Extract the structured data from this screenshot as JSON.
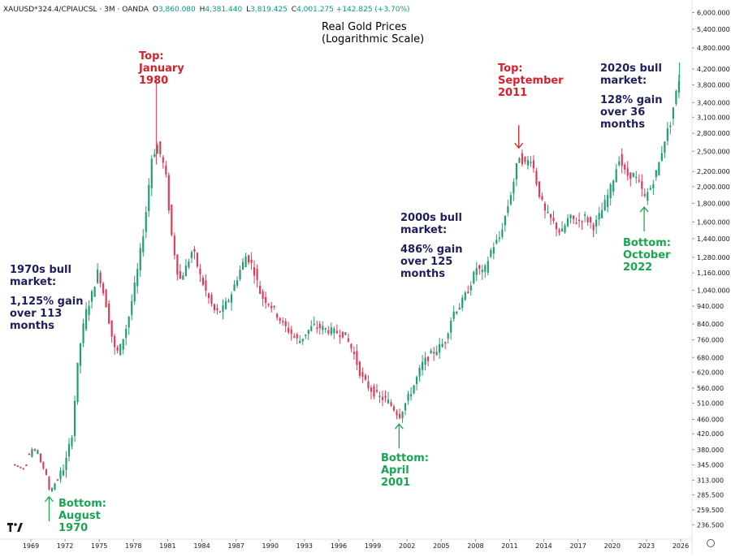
{
  "header": {
    "symbol": "XAUUSD*324.4/CPIAUCSL · 3M · OANDA",
    "open_label": "O",
    "open": "3,860.080",
    "high_label": "H",
    "high": "4,381.440",
    "low_label": "L",
    "low": "3,819.425",
    "close_label": "C",
    "close": "4,001.275",
    "change": "+142.825 (+3.70%)"
  },
  "title_lines": [
    "Real Gold Prices",
    "(Logarithmic Scale)"
  ],
  "annotations": {
    "top_1980": [
      "Top:",
      "January",
      "1980"
    ],
    "top_2011": [
      "Top:",
      "September",
      "2011"
    ],
    "bull_2020s_a": [
      "2020s bull",
      "market:"
    ],
    "bull_2020s_b": [
      "128% gain",
      "over 36",
      "months"
    ],
    "bull_2000s_a": [
      "2000s bull",
      "market:"
    ],
    "bull_2000s_b": [
      "486% gain",
      "over 125",
      "months"
    ],
    "bull_1970s_a": [
      "1970s bull",
      "market:"
    ],
    "bull_1970s_b": [
      "1,125% gain",
      "over 113",
      "months"
    ],
    "bottom_1970": [
      "Bottom:",
      "August",
      "1970"
    ],
    "bottom_2001": [
      "Bottom:",
      "April",
      "2001"
    ],
    "bottom_2022": [
      "Bottom:",
      "October",
      "2022"
    ]
  },
  "colors": {
    "up": "#1f9e74",
    "down": "#e23a55",
    "top_text": "#d8202a",
    "bottom_text": "#19a653",
    "bull_text": "#1c1f5a"
  },
  "chart_data": {
    "type": "candlestick",
    "title": "Real Gold Prices (Logarithmic Scale)",
    "scale": "log",
    "x_ticks": [
      "1969",
      "1972",
      "1975",
      "1978",
      "1981",
      "1984",
      "1987",
      "1990",
      "1993",
      "1996",
      "1999",
      "2002",
      "2005",
      "2008",
      "2011",
      "2014",
      "2017",
      "2020",
      "2023",
      "2026"
    ],
    "y_ticks": [
      "6,000.000",
      "5,400.000",
      "4,800.000",
      "4,200.000",
      "3,800.000",
      "3,400.000",
      "3,100.000",
      "2,800.000",
      "2,500.000",
      "2,200.000",
      "2,000.000",
      "1,800.000",
      "1,600.000",
      "1,440.000",
      "1,280.000",
      "1,160.000",
      "1,040.000",
      "940.000",
      "840.000",
      "760.000",
      "680.000",
      "620.000",
      "560.000",
      "510.000",
      "460.000",
      "420.000",
      "380.000",
      "345.000",
      "313.000",
      "285.500",
      "259.500",
      "236.500"
    ],
    "ylim": [
      225,
      6300
    ],
    "series": [
      {
        "name": "XAUUSD*324.4/CPIAUCSL",
        "points": [
          {
            "x": 1967.6,
            "y": 345
          },
          {
            "x": 1968.5,
            "y": 335
          },
          {
            "x": 1969.0,
            "y": 385
          },
          {
            "x": 1969.6,
            "y": 370
          },
          {
            "x": 1970.1,
            "y": 340
          },
          {
            "x": 1970.6,
            "y": 297
          },
          {
            "x": 1971.2,
            "y": 310
          },
          {
            "x": 1972.0,
            "y": 345
          },
          {
            "x": 1972.6,
            "y": 420
          },
          {
            "x": 1973.2,
            "y": 700
          },
          {
            "x": 1973.8,
            "y": 900
          },
          {
            "x": 1974.3,
            "y": 1000
          },
          {
            "x": 1974.9,
            "y": 1180
          },
          {
            "x": 1975.6,
            "y": 950
          },
          {
            "x": 1976.3,
            "y": 720
          },
          {
            "x": 1976.7,
            "y": 700
          },
          {
            "x": 1977.5,
            "y": 850
          },
          {
            "x": 1978.3,
            "y": 1150
          },
          {
            "x": 1979.0,
            "y": 1600
          },
          {
            "x": 1979.6,
            "y": 2400
          },
          {
            "x": 1980.1,
            "y": 2600
          },
          {
            "x": 1980.8,
            "y": 2200
          },
          {
            "x": 1981.3,
            "y": 1500
          },
          {
            "x": 1982.0,
            "y": 1100
          },
          {
            "x": 1982.6,
            "y": 1200
          },
          {
            "x": 1983.2,
            "y": 1350
          },
          {
            "x": 1983.8,
            "y": 1150
          },
          {
            "x": 1984.5,
            "y": 1000
          },
          {
            "x": 1985.2,
            "y": 900
          },
          {
            "x": 1985.8,
            "y": 920
          },
          {
            "x": 1986.5,
            "y": 1000
          },
          {
            "x": 1987.2,
            "y": 1150
          },
          {
            "x": 1987.9,
            "y": 1300
          },
          {
            "x": 1988.5,
            "y": 1200
          },
          {
            "x": 1989.2,
            "y": 1000
          },
          {
            "x": 1989.9,
            "y": 960
          },
          {
            "x": 1990.5,
            "y": 900
          },
          {
            "x": 1991.2,
            "y": 830
          },
          {
            "x": 1991.9,
            "y": 790
          },
          {
            "x": 1992.5,
            "y": 750
          },
          {
            "x": 1993.2,
            "y": 800
          },
          {
            "x": 1993.8,
            "y": 830
          },
          {
            "x": 1994.5,
            "y": 820
          },
          {
            "x": 1995.5,
            "y": 800
          },
          {
            "x": 1996.5,
            "y": 790
          },
          {
            "x": 1997.3,
            "y": 700
          },
          {
            "x": 1998.0,
            "y": 600
          },
          {
            "x": 1998.7,
            "y": 560
          },
          {
            "x": 1999.5,
            "y": 530
          },
          {
            "x": 2000.2,
            "y": 520
          },
          {
            "x": 2000.9,
            "y": 490
          },
          {
            "x": 2001.3,
            "y": 470
          },
          {
            "x": 2002.0,
            "y": 520
          },
          {
            "x": 2002.7,
            "y": 580
          },
          {
            "x": 2003.3,
            "y": 650
          },
          {
            "x": 2004.0,
            "y": 690
          },
          {
            "x": 2004.7,
            "y": 720
          },
          {
            "x": 2005.3,
            "y": 750
          },
          {
            "x": 2006.0,
            "y": 900
          },
          {
            "x": 2006.7,
            "y": 950
          },
          {
            "x": 2007.4,
            "y": 1050
          },
          {
            "x": 2008.1,
            "y": 1200
          },
          {
            "x": 2008.7,
            "y": 1150
          },
          {
            "x": 2009.4,
            "y": 1350
          },
          {
            "x": 2010.1,
            "y": 1450
          },
          {
            "x": 2010.8,
            "y": 1750
          },
          {
            "x": 2011.4,
            "y": 2100
          },
          {
            "x": 2011.8,
            "y": 2450
          },
          {
            "x": 2012.3,
            "y": 2300
          },
          {
            "x": 2012.9,
            "y": 2400
          },
          {
            "x": 2013.5,
            "y": 1950
          },
          {
            "x": 2014.1,
            "y": 1700
          },
          {
            "x": 2014.8,
            "y": 1600
          },
          {
            "x": 2015.5,
            "y": 1480
          },
          {
            "x": 2016.2,
            "y": 1650
          },
          {
            "x": 2016.9,
            "y": 1600
          },
          {
            "x": 2017.6,
            "y": 1650
          },
          {
            "x": 2018.4,
            "y": 1550
          },
          {
            "x": 2019.2,
            "y": 1750
          },
          {
            "x": 2019.9,
            "y": 2000
          },
          {
            "x": 2020.6,
            "y": 2400
          },
          {
            "x": 2021.2,
            "y": 2150
          },
          {
            "x": 2021.9,
            "y": 2150
          },
          {
            "x": 2022.5,
            "y": 2000
          },
          {
            "x": 2022.8,
            "y": 1850
          },
          {
            "x": 2023.4,
            "y": 2000
          },
          {
            "x": 2024.0,
            "y": 2250
          },
          {
            "x": 2024.6,
            "y": 2700
          },
          {
            "x": 2025.1,
            "y": 3000
          },
          {
            "x": 2025.5,
            "y": 3500
          },
          {
            "x": 2025.9,
            "y": 4000
          }
        ]
      }
    ],
    "callouts": [
      {
        "x": 1970.6,
        "y": 297,
        "dir": "up",
        "color": "green"
      },
      {
        "x": 2001.3,
        "y": 470,
        "dir": "up",
        "color": "green"
      },
      {
        "x": 2022.8,
        "y": 1850,
        "dir": "up",
        "color": "green"
      },
      {
        "x": 2011.8,
        "y": 2450,
        "dir": "down",
        "color": "red"
      }
    ]
  }
}
